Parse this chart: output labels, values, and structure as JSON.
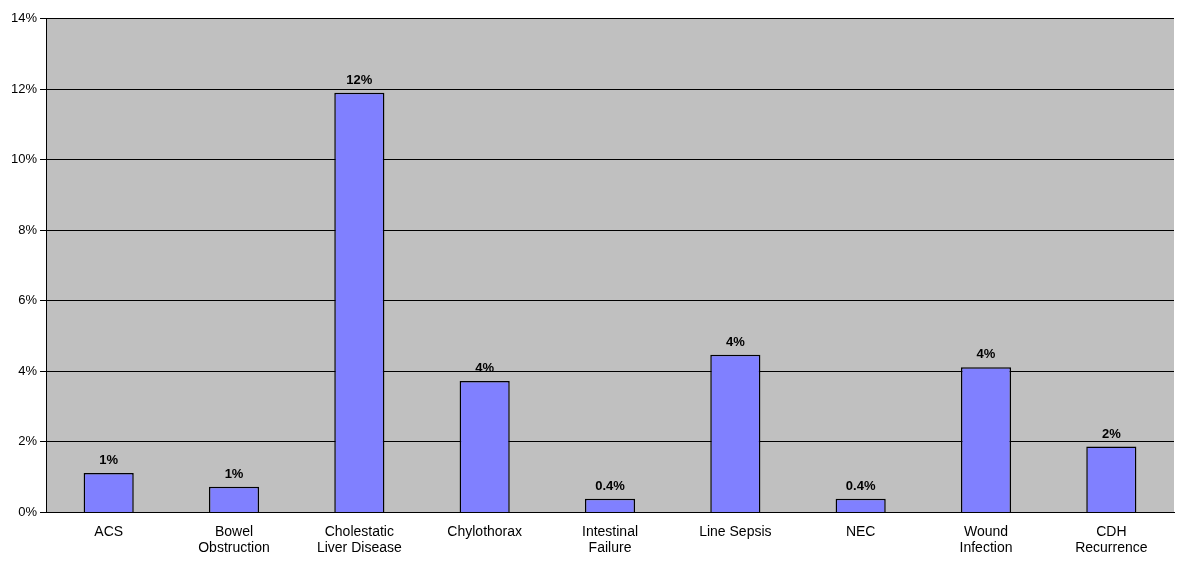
{
  "chart_data": {
    "type": "bar",
    "categories": [
      "ACS",
      "Bowel Obstruction",
      "Cholestatic Liver Disease",
      "Chylothorax",
      "Intestinal Failure",
      "Line Sepsis",
      "NEC",
      "Wound Infection",
      "CDH Recurrence"
    ],
    "values": [
      1.12,
      0.73,
      11.9,
      3.73,
      0.39,
      4.47,
      0.39,
      4.12,
      1.87
    ],
    "value_labels": [
      "1%",
      "1%",
      "12%",
      "4%",
      "0.4%",
      "4%",
      "0.4%",
      "4%",
      "2%"
    ],
    "color": "#8080ff",
    "ylim": [
      0,
      14
    ],
    "yticks": [
      {
        "value": 0,
        "label": "0%"
      },
      {
        "value": 2,
        "label": "2%"
      },
      {
        "value": 4,
        "label": "4%"
      },
      {
        "value": 6,
        "label": "6%"
      },
      {
        "value": 8,
        "label": "8%"
      },
      {
        "value": 10,
        "label": "10%"
      },
      {
        "value": 12,
        "label": "12%"
      },
      {
        "value": 14,
        "label": "14%"
      }
    ],
    "grid": "y",
    "legend": false
  }
}
